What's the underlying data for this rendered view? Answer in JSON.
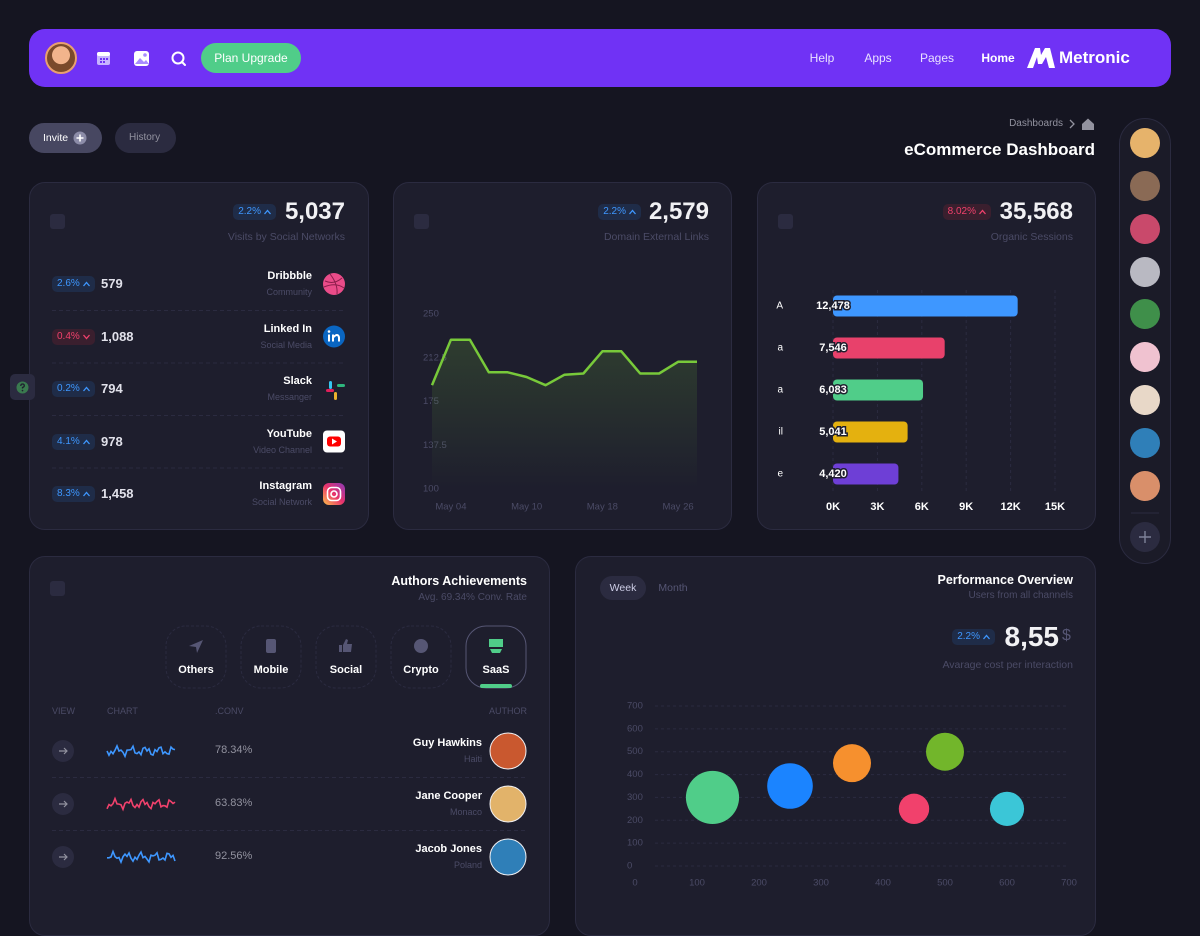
{
  "header": {
    "upgrade": "Plan Upgrade",
    "nav": [
      "Help",
      "Apps",
      "Pages",
      "Home"
    ],
    "active_nav": 3,
    "brand": "Metronic"
  },
  "toolbar": {
    "invite": "Invite",
    "history": "History",
    "breadcrumb": "Dashboards",
    "title": "eCommerce Dashboard"
  },
  "social_card": {
    "badge": {
      "text": "2.2%",
      "trend": "up",
      "tone": "info"
    },
    "total": "5,037",
    "label": "Visits by Social Networks",
    "rows": [
      {
        "badge": {
          "text": "2.6%",
          "trend": "up",
          "tone": "info"
        },
        "value": "579",
        "name": "Dribbble",
        "sub": "Community"
      },
      {
        "badge": {
          "text": "0.4%",
          "trend": "down",
          "tone": "danger"
        },
        "value": "1,088",
        "name": "Linked In",
        "sub": "Social Media"
      },
      {
        "badge": {
          "text": "0.2%",
          "trend": "up",
          "tone": "info"
        },
        "value": "794",
        "name": "Slack",
        "sub": "Messanger"
      },
      {
        "badge": {
          "text": "4.1%",
          "trend": "up",
          "tone": "info"
        },
        "value": "978",
        "name": "YouTube",
        "sub": "Video Channel"
      },
      {
        "badge": {
          "text": "8.3%",
          "trend": "up",
          "tone": "info"
        },
        "value": "1,458",
        "name": "Instagram",
        "sub": "Social Network"
      }
    ]
  },
  "links_card": {
    "badge": {
      "text": "2.2%",
      "trend": "up",
      "tone": "info"
    },
    "total": "2,579",
    "label": "Domain External Links",
    "chart_data": {
      "type": "line",
      "categories": [
        null,
        "May 04",
        null,
        null,
        null,
        "May 10",
        null,
        null,
        null,
        "May 18",
        null,
        null,
        null,
        "May 26",
        null
      ],
      "series": [
        {
          "color": "#78c93a",
          "values": [
            189,
            228,
            228,
            200,
            200,
            196,
            189,
            198,
            199,
            218,
            218,
            199,
            199,
            209,
            209
          ]
        }
      ],
      "ylim": [
        100,
        250
      ],
      "yticks": [
        100,
        137.5,
        175,
        212.5,
        250
      ]
    }
  },
  "sessions_card": {
    "badge": {
      "text": "8.02%",
      "trend": "up",
      "tone": "danger"
    },
    "total": "35,568",
    "label": "Organic Sessions",
    "chart_data": {
      "type": "bar",
      "orientation": "horizontal",
      "categories": [
        "A",
        "a",
        "a",
        "il",
        "e"
      ],
      "values": [
        12478,
        7546,
        6083,
        5041,
        4420
      ],
      "value_labels": [
        "12,478",
        "7,546",
        "6,083",
        "5,041",
        "4,420"
      ],
      "colors": [
        "#3e97ff",
        "#e8416b",
        "#50cd89",
        "#e4b10f",
        "#6e3fd6"
      ],
      "xlim": [
        0,
        15000
      ],
      "xticks": [
        {
          "value": 0,
          "label": "0K"
        },
        {
          "value": 3000,
          "label": "3K"
        },
        {
          "value": 6000,
          "label": "6K"
        },
        {
          "value": 9000,
          "label": "9K"
        },
        {
          "value": 12000,
          "label": "12K"
        },
        {
          "value": 15000,
          "label": "15K"
        }
      ],
      "grid": true
    }
  },
  "authors_card": {
    "title": "Authors Achievements",
    "subtitle": "Avg. 69.34% Conv. Rate",
    "tabs": [
      "Others",
      "Mobile",
      "Social",
      "Crypto",
      "SaaS"
    ],
    "active_tab": 4,
    "columns": [
      "VIEW",
      "CHART",
      ".CONV",
      "AUTHOR"
    ],
    "rows": [
      {
        "conv": "78.34%",
        "name": "Guy Hawkins",
        "location": "Haiti",
        "color": "#3e97ff"
      },
      {
        "conv": "63.83%",
        "name": "Jane Cooper",
        "location": "Monaco",
        "color": "#f1416c"
      },
      {
        "conv": "92.56%",
        "name": "Jacob Jones",
        "location": "Poland",
        "color": "#3e97ff"
      }
    ]
  },
  "performance_card": {
    "tabs": [
      "Week",
      "Month"
    ],
    "active_tab": 0,
    "title": "Performance Overview",
    "subtitle": "Users from all channels",
    "badge": {
      "text": "2.2%",
      "trend": "up",
      "tone": "info"
    },
    "value": "8,55",
    "currency": "$",
    "label": "Avarage cost per interaction",
    "chart_data": {
      "type": "bubble",
      "series": [
        {
          "x": [
            125,
            250,
            350,
            450,
            500,
            600
          ],
          "y": [
            300,
            350,
            450,
            250,
            500,
            250
          ],
          "size": [
            70,
            60,
            50,
            40,
            50,
            45
          ],
          "colors": [
            "#50cd89",
            "#1b84ff",
            "#f6902e",
            "#f1416c",
            "#72b62b",
            "#3bc6d7"
          ]
        }
      ],
      "xlim": [
        0,
        700
      ],
      "ylim": [
        0,
        700
      ],
      "xticks": [
        0,
        100,
        200,
        300,
        400,
        500,
        600,
        700
      ],
      "yticks": [
        0,
        100,
        200,
        300,
        400,
        500,
        600,
        700
      ],
      "grid": true
    }
  }
}
